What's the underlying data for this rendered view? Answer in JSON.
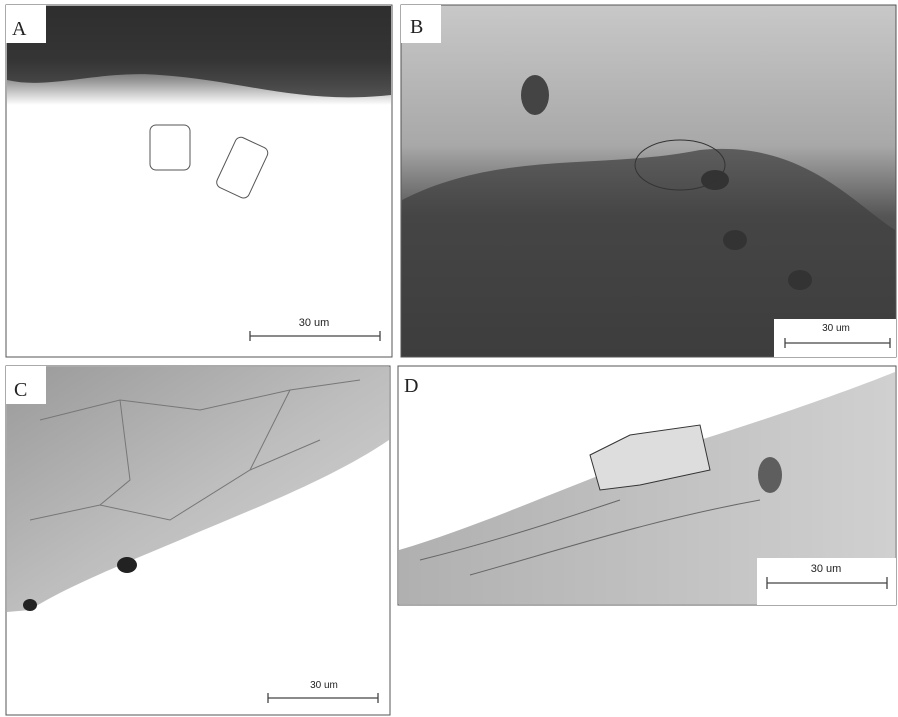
{
  "panels": [
    {
      "label": "A",
      "scale_bar": "30 um"
    },
    {
      "label": "B",
      "scale_bar": "30 um"
    },
    {
      "label": "C",
      "scale_bar": "30 um"
    },
    {
      "label": "D",
      "scale_bar": "30 um"
    }
  ]
}
